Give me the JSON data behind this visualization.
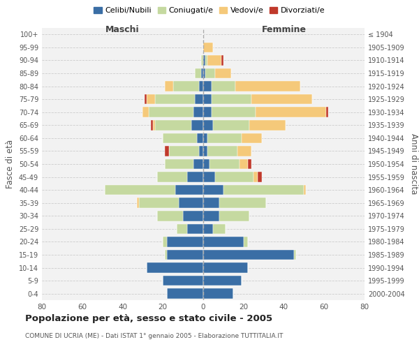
{
  "age_groups": [
    "0-4",
    "5-9",
    "10-14",
    "15-19",
    "20-24",
    "25-29",
    "30-34",
    "35-39",
    "40-44",
    "45-49",
    "50-54",
    "55-59",
    "60-64",
    "65-69",
    "70-74",
    "75-79",
    "80-84",
    "85-89",
    "90-94",
    "95-99",
    "100+"
  ],
  "birth_years": [
    "2000-2004",
    "1995-1999",
    "1990-1994",
    "1985-1989",
    "1980-1984",
    "1975-1979",
    "1970-1974",
    "1965-1969",
    "1960-1964",
    "1955-1959",
    "1950-1954",
    "1945-1949",
    "1940-1944",
    "1935-1939",
    "1930-1934",
    "1925-1929",
    "1920-1924",
    "1915-1919",
    "1910-1914",
    "1905-1909",
    "≤ 1904"
  ],
  "maschi": {
    "celibi": [
      18,
      20,
      28,
      18,
      18,
      8,
      10,
      12,
      14,
      8,
      5,
      2,
      3,
      6,
      5,
      4,
      2,
      1,
      0,
      0,
      0
    ],
    "coniugati": [
      0,
      0,
      0,
      1,
      2,
      5,
      13,
      20,
      35,
      15,
      14,
      15,
      17,
      18,
      22,
      20,
      13,
      3,
      1,
      0,
      0
    ],
    "vedovi": [
      0,
      0,
      0,
      0,
      0,
      0,
      0,
      1,
      0,
      0,
      0,
      0,
      0,
      1,
      3,
      4,
      4,
      0,
      0,
      0,
      0
    ],
    "divorziati": [
      0,
      0,
      0,
      0,
      0,
      0,
      0,
      0,
      0,
      0,
      0,
      2,
      0,
      1,
      0,
      1,
      0,
      0,
      0,
      0,
      0
    ]
  },
  "femmine": {
    "nubili": [
      15,
      19,
      22,
      45,
      20,
      5,
      8,
      8,
      10,
      6,
      3,
      2,
      2,
      5,
      4,
      4,
      4,
      1,
      1,
      0,
      0
    ],
    "coniugate": [
      0,
      0,
      0,
      1,
      2,
      6,
      15,
      23,
      40,
      19,
      15,
      15,
      17,
      18,
      22,
      20,
      12,
      5,
      1,
      0,
      0
    ],
    "vedove": [
      0,
      0,
      0,
      0,
      0,
      0,
      0,
      0,
      1,
      2,
      4,
      7,
      10,
      18,
      35,
      30,
      32,
      8,
      7,
      5,
      0
    ],
    "divorziate": [
      0,
      0,
      0,
      0,
      0,
      0,
      0,
      0,
      0,
      2,
      2,
      0,
      0,
      0,
      1,
      0,
      0,
      0,
      1,
      0,
      0
    ]
  },
  "colors": {
    "celibi": "#3a6ea5",
    "coniugati": "#c5d9a0",
    "vedovi": "#f5c97a",
    "divorziati": "#c0392b"
  },
  "xlim": 80,
  "title": "Popolazione per età, sesso e stato civile - 2005",
  "subtitle": "COMUNE DI UCRIA (ME) - Dati ISTAT 1° gennaio 2005 - Elaborazione TUTTITALIA.IT",
  "xlabel_left": "Maschi",
  "xlabel_right": "Femmine",
  "ylabel_left": "Fasce di età",
  "ylabel_right": "Anni di nascita",
  "legend_labels": [
    "Celibi/Nubili",
    "Coniugati/e",
    "Vedovi/e",
    "Divorziati/e"
  ],
  "bg_color": "#ffffff",
  "plot_bg_color": "#f2f2f2",
  "grid_color": "#cccccc"
}
